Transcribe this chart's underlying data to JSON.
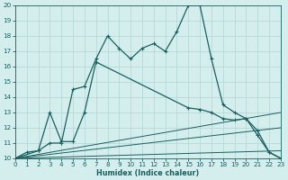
{
  "xlabel": "Humidex (Indice chaleur)",
  "bg_color": "#d4eeee",
  "line_color": "#1a5f5f",
  "grid_color": "#b8d8d8",
  "xlim": [
    0,
    23
  ],
  "ylim": [
    10,
    20
  ],
  "xticks": [
    0,
    1,
    2,
    3,
    4,
    5,
    6,
    7,
    8,
    9,
    10,
    11,
    12,
    13,
    14,
    15,
    16,
    17,
    18,
    19,
    20,
    21,
    22,
    23
  ],
  "yticks": [
    10,
    11,
    12,
    13,
    14,
    15,
    16,
    17,
    18,
    19,
    20
  ],
  "line1_x": [
    0,
    1,
    2,
    3,
    4,
    5,
    6,
    7,
    8,
    9,
    10,
    11,
    12,
    13,
    14,
    15,
    16,
    17,
    18,
    19,
    20,
    21,
    22,
    23
  ],
  "line1_y": [
    10,
    10.4,
    10.5,
    11.0,
    11.0,
    14.5,
    14.7,
    16.5,
    18,
    17.2,
    16.5,
    17.2,
    17.5,
    17.0,
    18.3,
    20,
    20,
    16.5,
    13.5,
    13.0,
    12.6,
    11.5,
    10.4,
    10
  ],
  "line2_x": [
    0,
    2,
    3,
    4,
    5,
    6,
    7,
    15,
    16,
    17,
    18,
    19,
    20,
    21,
    22,
    23
  ],
  "line2_y": [
    10,
    10.5,
    13.0,
    11.1,
    11.1,
    13.0,
    16.3,
    13.3,
    13.2,
    13.0,
    12.6,
    12.5,
    12.6,
    11.8,
    10.4,
    10
  ],
  "line3_x": [
    0,
    23
  ],
  "line3_y": [
    10,
    13.0
  ],
  "line4_x": [
    0,
    23
  ],
  "line4_y": [
    10,
    12.0
  ],
  "line5_x": [
    0,
    23
  ],
  "line5_y": [
    10,
    10.5
  ]
}
